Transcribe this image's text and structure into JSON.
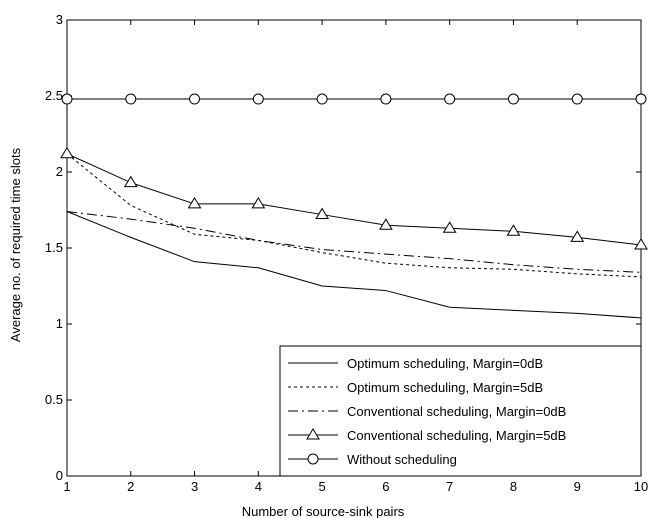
{
  "chart_data": {
    "type": "line",
    "xlabel": "Number of source-sink pairs",
    "ylabel": "Average no. of required time slots",
    "xlim": [
      1,
      10
    ],
    "ylim": [
      0,
      3
    ],
    "x_ticks": [
      "1",
      "2",
      "3",
      "4",
      "5",
      "6",
      "7",
      "8",
      "9",
      "10"
    ],
    "y_ticks": [
      "0",
      "0.5",
      "1",
      "1.5",
      "2",
      "2.5",
      "3"
    ],
    "grid": false,
    "legend_position": "bottom-right",
    "x": [
      1,
      2,
      3,
      4,
      5,
      6,
      7,
      8,
      9,
      10
    ],
    "series": [
      {
        "name": "Optimum scheduling, Margin=0dB",
        "line_style": "solid",
        "marker": "none",
        "values": [
          1.74,
          1.57,
          1.41,
          1.37,
          1.25,
          1.22,
          1.11,
          1.09,
          1.07,
          1.04
        ]
      },
      {
        "name": "Optimum scheduling, Margin=5dB",
        "line_style": "dotted",
        "marker": "none",
        "values": [
          2.12,
          1.78,
          1.59,
          1.55,
          1.47,
          1.4,
          1.37,
          1.36,
          1.33,
          1.31
        ]
      },
      {
        "name": "Conventional scheduling, Margin=0dB",
        "line_style": "dashdot",
        "marker": "none",
        "values": [
          1.74,
          1.69,
          1.63,
          1.55,
          1.49,
          1.46,
          1.43,
          1.39,
          1.36,
          1.34
        ]
      },
      {
        "name": "Conventional scheduling, Margin=5dB",
        "line_style": "solid",
        "marker": "triangle",
        "values": [
          2.12,
          1.93,
          1.79,
          1.79,
          1.72,
          1.65,
          1.63,
          1.61,
          1.57,
          1.52
        ]
      },
      {
        "name": "Without scheduling",
        "line_style": "solid",
        "marker": "circle",
        "values": [
          2.48,
          2.48,
          2.48,
          2.48,
          2.48,
          2.48,
          2.48,
          2.48,
          2.48,
          2.48
        ]
      }
    ]
  }
}
